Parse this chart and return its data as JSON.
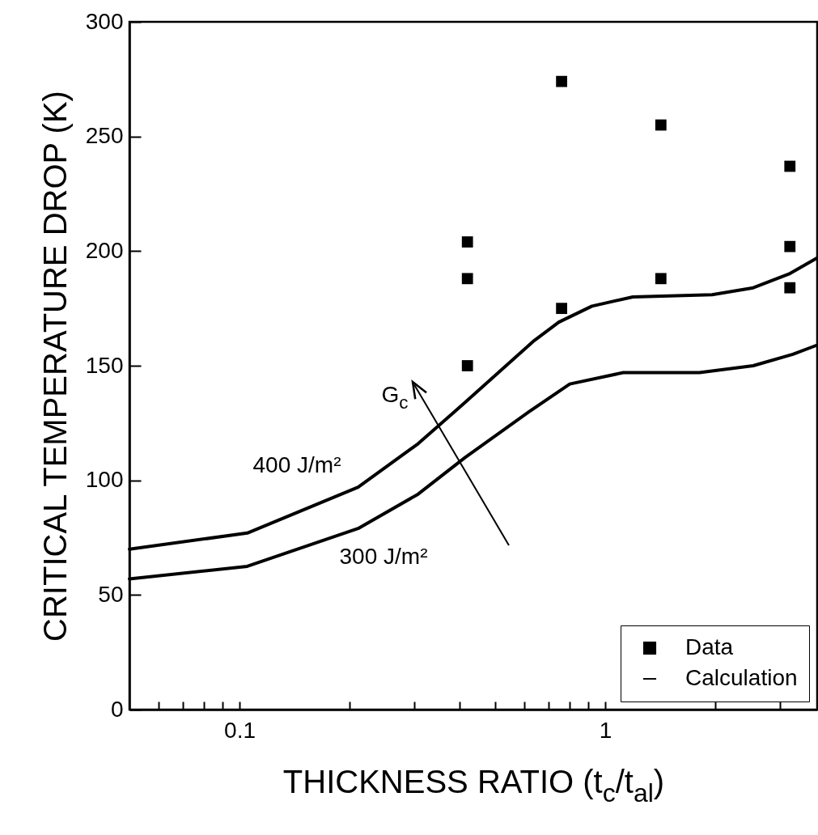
{
  "chart_data": {
    "type": "scatter",
    "xlabel": "THICKNESS RATIO (t$_{c}$/t$_{al}$)",
    "ylabel": "CRITICAL TEMPERATURE DROP (K)",
    "log": "x",
    "xlim": [
      0.05,
      3.8
    ],
    "ylim": [
      0,
      300
    ],
    "xticks": [
      {
        "value": 0.06,
        "label": null
      },
      {
        "value": 0.07,
        "label": null
      },
      {
        "value": 0.08,
        "label": null
      },
      {
        "value": 0.09,
        "label": null
      },
      0.1,
      {
        "value": 0.2,
        "label": null
      },
      {
        "value": 0.3,
        "label": null
      },
      {
        "value": 0.4,
        "label": null
      },
      {
        "value": 0.5,
        "label": null
      },
      {
        "value": 0.6,
        "label": null
      },
      {
        "value": 0.7,
        "label": null
      },
      {
        "value": 0.8,
        "label": null
      },
      {
        "value": 0.9,
        "label": null
      },
      1,
      {
        "value": 2,
        "label": null
      },
      {
        "value": 3,
        "label": null
      }
    ],
    "yticks": [
      0,
      50,
      100,
      150,
      200,
      250,
      300
    ],
    "grid": false,
    "legend": "bottom right",
    "series": [
      {
        "name": "Data",
        "color": "#000000",
        "marker": "square",
        "x": [
          0.42,
          0.42,
          0.42,
          0.76,
          0.76,
          1.42,
          1.42,
          3.2,
          3.2,
          3.2
        ],
        "values": [
          204,
          188,
          150,
          274,
          175,
          255,
          188,
          237,
          202,
          184
        ]
      },
      {
        "name": "Calculation",
        "type": "line",
        "color": "#000000",
        "marker": "none",
        "line_style": "solid",
        "x": [
          0.05,
          0.105,
          0.211,
          0.308,
          0.414,
          0.64,
          0.747,
          0.92,
          1.19,
          1.96,
          2.54,
          3.18,
          3.8
        ],
        "values": [
          70,
          77,
          97,
          116,
          134,
          161,
          169,
          176,
          180,
          181,
          184,
          190,
          197
        ]
      },
      {
        "type": "line",
        "color": "#000000",
        "marker": "none",
        "line_style": "solid",
        "x": [
          0.05,
          0.105,
          0.211,
          0.308,
          0.414,
          0.62,
          0.8,
          1.12,
          1.81,
          2.54,
          3.26,
          3.8
        ],
        "values": [
          57,
          62.5,
          79,
          94,
          110,
          130,
          142,
          147,
          147,
          150,
          155,
          159
        ]
      }
    ],
    "annotations": [
      "400 J/m²",
      "300 J/m²",
      "G$_{c}$"
    ]
  }
}
